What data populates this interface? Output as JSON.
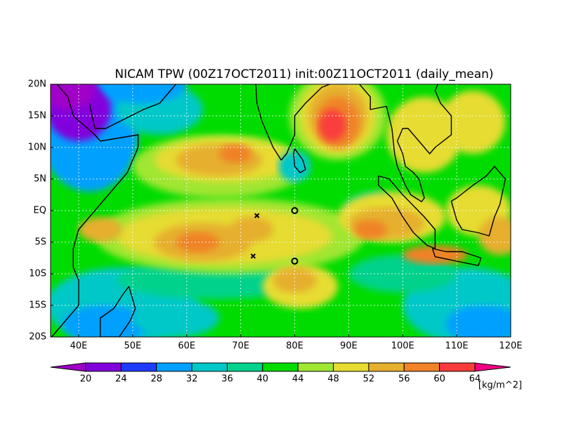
{
  "map": {
    "title": "NICAM TPW (00Z17OCT2011) init:00Z11OCT2011 (daily_mean)",
    "lat_labels": [
      "20N",
      "15N",
      "10N",
      "5N",
      "EQ",
      "5S",
      "10S",
      "15S",
      "20S"
    ],
    "lon_labels": [
      "40E",
      "50E",
      "60E",
      "70E",
      "80E",
      "90E",
      "100E",
      "110E",
      "120E"
    ],
    "colorbar": {
      "levels": [
        20,
        24,
        28,
        32,
        36,
        40,
        44,
        48,
        52,
        56,
        60,
        64
      ],
      "colors": [
        "#a000c8",
        "#8200dc",
        "#1e3cff",
        "#00a0ff",
        "#00c8c8",
        "#00d28c",
        "#00dc00",
        "#a0e632",
        "#e6dc32",
        "#e6af2d",
        "#f08228",
        "#fa3c3c",
        "#f00082"
      ],
      "unit": "[kg/m^2]"
    }
  }
}
